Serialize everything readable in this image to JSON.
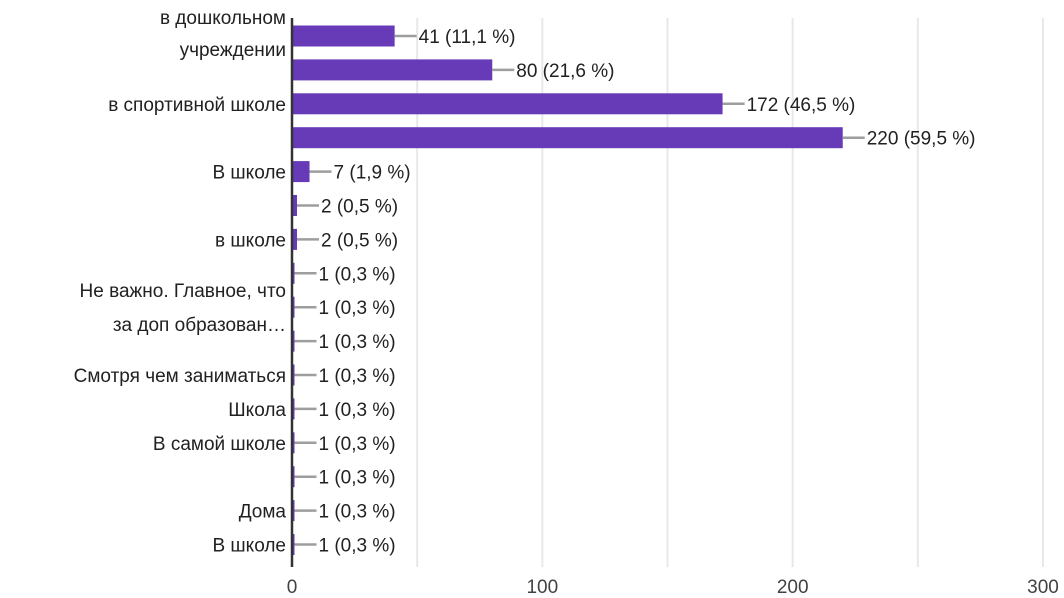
{
  "chart_data": {
    "type": "bar",
    "orientation": "horizontal",
    "colors": {
      "bar": "#673ab7",
      "leader": "#9e9e9e",
      "grid": "#e8e8e8",
      "axis": "#333333"
    },
    "categories": [
      [
        "в дошкольном",
        "учреждении"
      ],
      [],
      [
        "в спортивной школе"
      ],
      [],
      [
        "В школе"
      ],
      [],
      [
        "в школе"
      ],
      [],
      [
        "Не важно. Главное, что",
        "за доп образован…"
      ],
      [],
      [
        "Смотря чем заниматься"
      ],
      [
        "Школа"
      ],
      [
        "В самой школе"
      ],
      [],
      [
        "Дома"
      ],
      [
        "В школе"
      ]
    ],
    "values": [
      41,
      80,
      172,
      220,
      7,
      2,
      2,
      1,
      1,
      1,
      1,
      1,
      1,
      1,
      1,
      1
    ],
    "value_labels": [
      "41 (11,1 %)",
      "80 (21,6 %)",
      "172 (46,5 %)",
      "220 (59,5 %)",
      "7 (1,9 %)",
      "2 (0,5 %)",
      "2 (0,5 %)",
      "1 (0,3 %)",
      "1 (0,3 %)",
      "1 (0,3 %)",
      "1 (0,3 %)",
      "1 (0,3 %)",
      "1 (0,3 %)",
      "1 (0,3 %)",
      "1 (0,3 %)",
      "1 (0,3 %)"
    ],
    "xlim": [
      0,
      300
    ],
    "xticks": [
      0,
      100,
      200,
      300
    ],
    "xtick_labels": [
      "0",
      "100",
      "200",
      "300"
    ],
    "grid": true,
    "legend": "none"
  }
}
